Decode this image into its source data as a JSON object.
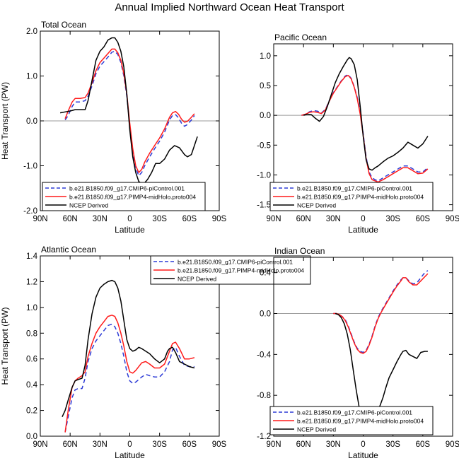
{
  "figure": {
    "title": "Annual Implied Northward Ocean Heat Transport"
  },
  "series_styles": [
    {
      "name": "b.e21.B1850.f09_g17.CMIP6-piControl.001",
      "color": "#2d3bd6",
      "dash": "6,4"
    },
    {
      "name": "b.e21.B1850.f09_g17.PIMP4-midHolo.proto004",
      "color": "#ff1a1a",
      "dash": ""
    },
    {
      "name": "NCEP Derived",
      "color": "#000000",
      "dash": ""
    }
  ],
  "chart_data": [
    {
      "type": "line",
      "title": "Total Ocean",
      "xlabel": "Latitude",
      "ylabel": "Heat Transport (PW)",
      "xlim": [
        90,
        -90
      ],
      "ylim": [
        -2.0,
        2.0
      ],
      "xticks": [
        90,
        60,
        30,
        0,
        -30,
        -60,
        -90
      ],
      "xticklabels": [
        "90N",
        "60N",
        "30N",
        "0",
        "30S",
        "60S",
        "90S"
      ],
      "yticks": [
        -2.0,
        -1.0,
        0.0,
        1.0,
        2.0
      ],
      "yticklabels": [
        "-2.0",
        "-1.0",
        "0.0",
        "1.0",
        "2.0"
      ],
      "zero_line": true,
      "legend": "bottom-left",
      "series": [
        {
          "name": "b.e21.B1850.f09_g17.CMIP6-piControl.001",
          "x": [
            65,
            62,
            58,
            55,
            50,
            45,
            42,
            38,
            34,
            30,
            26,
            22,
            18,
            15,
            12,
            9,
            6,
            3,
            0,
            -3,
            -6,
            -9,
            -12,
            -15,
            -20,
            -25,
            -30,
            -35,
            -40,
            -43,
            -46,
            -49,
            -52,
            -55,
            -58,
            -62,
            -65
          ],
          "y": [
            0.02,
            0.12,
            0.32,
            0.42,
            0.42,
            0.45,
            0.55,
            0.78,
            1.05,
            1.22,
            1.32,
            1.42,
            1.53,
            1.55,
            1.48,
            1.3,
            1.0,
            0.55,
            -0.1,
            -0.7,
            -1.05,
            -1.22,
            -1.15,
            -1.0,
            -0.8,
            -0.62,
            -0.45,
            -0.25,
            0.02,
            0.12,
            0.14,
            0.07,
            -0.05,
            -0.12,
            -0.08,
            0.02,
            0.12
          ]
        },
        {
          "name": "b.e21.B1850.f09_g17.PIMP4-midHolo.proto004",
          "x": [
            65,
            62,
            58,
            55,
            50,
            45,
            42,
            38,
            34,
            30,
            26,
            22,
            18,
            15,
            12,
            9,
            6,
            3,
            0,
            -3,
            -6,
            -9,
            -12,
            -15,
            -20,
            -25,
            -30,
            -35,
            -40,
            -43,
            -46,
            -49,
            -52,
            -55,
            -58,
            -62,
            -65
          ],
          "y": [
            0.05,
            0.22,
            0.42,
            0.5,
            0.5,
            0.52,
            0.62,
            0.85,
            1.12,
            1.3,
            1.4,
            1.5,
            1.6,
            1.6,
            1.52,
            1.35,
            1.05,
            0.6,
            -0.05,
            -0.62,
            -1.0,
            -1.15,
            -1.08,
            -0.92,
            -0.72,
            -0.55,
            -0.38,
            -0.18,
            0.08,
            0.18,
            0.21,
            0.15,
            0.04,
            -0.03,
            -0.01,
            0.08,
            0.16
          ]
        },
        {
          "name": "NCEP Derived",
          "x": [
            70,
            65,
            60,
            55,
            50,
            45,
            42,
            38,
            34,
            30,
            26,
            22,
            18,
            15,
            12,
            9,
            6,
            3,
            0,
            -3,
            -6,
            -9,
            -12,
            -15,
            -18,
            -22,
            -26,
            -30,
            -35,
            -40,
            -45,
            -50,
            -55,
            -58,
            -62,
            -65,
            -68
          ],
          "y": [
            0.18,
            0.2,
            0.22,
            0.25,
            0.25,
            0.25,
            0.45,
            0.9,
            1.35,
            1.55,
            1.65,
            1.8,
            1.85,
            1.85,
            1.75,
            1.55,
            1.2,
            0.6,
            -0.2,
            -0.8,
            -1.15,
            -1.35,
            -1.4,
            -1.38,
            -1.3,
            -1.15,
            -0.95,
            -0.95,
            -0.85,
            -0.65,
            -0.55,
            -0.6,
            -0.75,
            -0.8,
            -0.75,
            -0.55,
            -0.35
          ]
        }
      ]
    },
    {
      "type": "line",
      "title": "Pacific Ocean",
      "xlabel": "Latitude",
      "ylabel": "",
      "xlim": [
        90,
        -90
      ],
      "ylim": [
        -1.6,
        1.2
      ],
      "xticks": [
        90,
        60,
        30,
        0,
        -30,
        -60,
        -90
      ],
      "xticklabels": [
        "90N",
        "60N",
        "30N",
        "0",
        "30S",
        "60S",
        "90S"
      ],
      "yticks": [
        -1.5,
        -1.0,
        -0.5,
        0.0,
        0.5,
        1.0
      ],
      "yticklabels": [
        "-1.5",
        "-1.0",
        "-0.5",
        "0.0",
        "0.5",
        "1.0"
      ],
      "zero_line": true,
      "legend": "bottom-left",
      "series": [
        {
          "name": "b.e21.B1850.f09_g17.CMIP6-piControl.001",
          "x": [
            62,
            58,
            54,
            50,
            46,
            42,
            38,
            34,
            30,
            26,
            22,
            18,
            15,
            12,
            9,
            6,
            3,
            0,
            -3,
            -6,
            -9,
            -12,
            -15,
            -20,
            -25,
            -30,
            -35,
            -40,
            -45,
            -50,
            -55,
            -60,
            -65
          ],
          "y": [
            0.0,
            0.02,
            0.06,
            0.08,
            0.07,
            0.04,
            0.1,
            0.25,
            0.38,
            0.48,
            0.58,
            0.66,
            0.68,
            0.62,
            0.48,
            0.3,
            0.05,
            -0.3,
            -0.7,
            -0.95,
            -1.05,
            -1.08,
            -1.1,
            -1.05,
            -1.0,
            -0.95,
            -0.9,
            -0.85,
            -0.85,
            -0.9,
            -0.95,
            -0.95,
            -0.88
          ]
        },
        {
          "name": "b.e21.B1850.f09_g17.PIMP4-midHolo.proto004",
          "x": [
            62,
            58,
            54,
            50,
            46,
            42,
            38,
            34,
            30,
            26,
            22,
            18,
            15,
            12,
            9,
            6,
            3,
            0,
            -3,
            -6,
            -9,
            -12,
            -15,
            -20,
            -25,
            -30,
            -35,
            -40,
            -45,
            -50,
            -55,
            -60,
            -65
          ],
          "y": [
            0.0,
            0.02,
            0.05,
            0.06,
            0.05,
            0.03,
            0.09,
            0.24,
            0.37,
            0.47,
            0.57,
            0.65,
            0.67,
            0.61,
            0.47,
            0.28,
            0.02,
            -0.33,
            -0.73,
            -0.98,
            -1.08,
            -1.1,
            -1.12,
            -1.08,
            -1.03,
            -0.98,
            -0.93,
            -0.88,
            -0.88,
            -0.93,
            -0.98,
            -0.97,
            -0.9
          ]
        },
        {
          "name": "NCEP Derived",
          "x": [
            60,
            56,
            52,
            48,
            44,
            40,
            36,
            32,
            28,
            24,
            20,
            16,
            14,
            12,
            9,
            6,
            3,
            0,
            -3,
            -6,
            -9,
            -12,
            -15,
            -20,
            -25,
            -30,
            -35,
            -40,
            -45,
            -50,
            -55,
            -60,
            -65
          ],
          "y": [
            0.0,
            0.02,
            0.01,
            -0.05,
            -0.1,
            -0.02,
            0.15,
            0.35,
            0.55,
            0.7,
            0.82,
            0.93,
            0.97,
            0.95,
            0.85,
            0.6,
            0.15,
            -0.35,
            -0.75,
            -0.9,
            -0.92,
            -0.88,
            -0.85,
            -0.78,
            -0.72,
            -0.68,
            -0.62,
            -0.55,
            -0.45,
            -0.5,
            -0.55,
            -0.48,
            -0.35
          ]
        }
      ]
    },
    {
      "type": "line",
      "title": "Atlantic Ocean",
      "xlabel": "Latitude",
      "ylabel": "Heat Transport (PW)",
      "xlim": [
        90,
        -90
      ],
      "ylim": [
        0.0,
        1.4
      ],
      "xticks": [
        90,
        60,
        30,
        0,
        -30,
        -60,
        -90
      ],
      "xticklabels": [
        "90N",
        "60N",
        "30N",
        "0",
        "30S",
        "60S",
        "90S"
      ],
      "yticks": [
        0.0,
        0.2,
        0.4,
        0.6,
        0.8,
        1.0,
        1.2,
        1.4
      ],
      "yticklabels": [
        "0.0",
        "0.2",
        "0.4",
        "0.6",
        "0.8",
        "1.0",
        "1.2",
        "1.4"
      ],
      "zero_line": false,
      "legend": "top-right",
      "series": [
        {
          "name": "b.e21.B1850.f09_g17.CMIP6-piControl.001",
          "x": [
            65,
            62,
            58,
            55,
            52,
            48,
            45,
            42,
            38,
            34,
            30,
            26,
            22,
            18,
            15,
            12,
            9,
            6,
            3,
            0,
            -3,
            -6,
            -9,
            -12,
            -16,
            -20,
            -25,
            -30,
            -35,
            -40,
            -43,
            -46,
            -50,
            -55,
            -60,
            -65
          ],
          "y": [
            0.03,
            0.15,
            0.3,
            0.36,
            0.37,
            0.37,
            0.45,
            0.58,
            0.68,
            0.74,
            0.78,
            0.82,
            0.86,
            0.87,
            0.85,
            0.8,
            0.72,
            0.62,
            0.5,
            0.43,
            0.41,
            0.42,
            0.44,
            0.46,
            0.48,
            0.47,
            0.46,
            0.46,
            0.5,
            0.58,
            0.67,
            0.69,
            0.62,
            0.55,
            0.54,
            0.54
          ]
        },
        {
          "name": "b.e21.B1850.f09_g17.PIMP4-midHolo.proto004",
          "x": [
            65,
            62,
            58,
            55,
            52,
            48,
            45,
            42,
            38,
            34,
            30,
            26,
            22,
            18,
            15,
            12,
            9,
            6,
            3,
            0,
            -3,
            -6,
            -9,
            -12,
            -16,
            -20,
            -25,
            -30,
            -35,
            -40,
            -43,
            -46,
            -50,
            -55,
            -60,
            -65
          ],
          "y": [
            0.03,
            0.2,
            0.38,
            0.43,
            0.45,
            0.47,
            0.5,
            0.62,
            0.72,
            0.8,
            0.85,
            0.89,
            0.93,
            0.94,
            0.93,
            0.88,
            0.8,
            0.7,
            0.58,
            0.5,
            0.49,
            0.51,
            0.54,
            0.57,
            0.58,
            0.56,
            0.53,
            0.53,
            0.56,
            0.66,
            0.72,
            0.73,
            0.68,
            0.6,
            0.6,
            0.61
          ]
        },
        {
          "name": "NCEP Derived",
          "x": [
            68,
            65,
            62,
            58,
            55,
            52,
            48,
            45,
            42,
            38,
            34,
            30,
            26,
            22,
            18,
            15,
            12,
            9,
            6,
            3,
            0,
            -3,
            -6,
            -9,
            -12,
            -16,
            -20,
            -25,
            -30,
            -35,
            -38,
            -40,
            -43,
            -46,
            -50,
            -55,
            -60,
            -65
          ],
          "y": [
            0.15,
            0.2,
            0.28,
            0.38,
            0.43,
            0.44,
            0.45,
            0.55,
            0.75,
            0.95,
            1.08,
            1.15,
            1.18,
            1.2,
            1.21,
            1.2,
            1.15,
            1.05,
            0.9,
            0.75,
            0.68,
            0.66,
            0.67,
            0.69,
            0.68,
            0.66,
            0.64,
            0.6,
            0.57,
            0.6,
            0.66,
            0.68,
            0.69,
            0.65,
            0.58,
            0.56,
            0.54,
            0.53
          ]
        }
      ]
    },
    {
      "type": "line",
      "title": "Indian Ocean",
      "xlabel": "Latitude",
      "ylabel": "",
      "xlim": [
        90,
        -90
      ],
      "ylim": [
        -1.2,
        0.55
      ],
      "xticks": [
        90,
        60,
        30,
        0,
        -30,
        -60,
        -90
      ],
      "xticklabels": [
        "90N",
        "60N",
        "30N",
        "0",
        "30S",
        "60S",
        "90S"
      ],
      "yticks": [
        -1.2,
        -0.8,
        -0.4,
        0.0,
        0.4
      ],
      "yticklabels": [
        "-1.2",
        "-0.8",
        "-0.4",
        "0.0",
        "0.4"
      ],
      "zero_line": true,
      "legend": "bottom-left",
      "series": [
        {
          "name": "b.e21.B1850.f09_g17.CMIP6-piControl.001",
          "x": [
            30,
            27,
            24,
            21,
            18,
            15,
            12,
            9,
            6,
            3,
            0,
            -3,
            -6,
            -9,
            -12,
            -15,
            -18,
            -21,
            -24,
            -27,
            -30,
            -34,
            -38,
            -40,
            -43,
            -46,
            -50,
            -54,
            -58,
            -62,
            -65
          ],
          "y": [
            0.0,
            0.0,
            -0.01,
            -0.03,
            -0.06,
            -0.12,
            -0.2,
            -0.28,
            -0.34,
            -0.37,
            -0.38,
            -0.36,
            -0.3,
            -0.22,
            -0.12,
            -0.04,
            0.02,
            0.07,
            0.12,
            0.17,
            0.22,
            0.28,
            0.33,
            0.35,
            0.35,
            0.32,
            0.29,
            0.3,
            0.35,
            0.4,
            0.42
          ]
        },
        {
          "name": "b.e21.B1850.f09_g17.PIMP4-midHolo.proto004",
          "x": [
            30,
            27,
            24,
            21,
            18,
            15,
            12,
            9,
            6,
            3,
            0,
            -3,
            -6,
            -9,
            -12,
            -15,
            -18,
            -21,
            -24,
            -27,
            -30,
            -34,
            -38,
            -40,
            -43,
            -46,
            -50,
            -54,
            -58,
            -62,
            -65
          ],
          "y": [
            0.0,
            0.0,
            -0.01,
            -0.03,
            -0.07,
            -0.13,
            -0.21,
            -0.29,
            -0.35,
            -0.38,
            -0.39,
            -0.37,
            -0.31,
            -0.23,
            -0.13,
            -0.05,
            0.01,
            0.06,
            0.11,
            0.16,
            0.21,
            0.27,
            0.32,
            0.35,
            0.35,
            0.31,
            0.28,
            0.28,
            0.32,
            0.36,
            0.39
          ]
        },
        {
          "name": "NCEP Derived",
          "x": [
            28,
            25,
            22,
            19,
            16,
            13,
            10,
            7,
            4,
            1,
            -2,
            -5,
            -8,
            -11,
            -14,
            -17,
            -20,
            -23,
            -26,
            -30,
            -34,
            -38,
            -40,
            -43,
            -46,
            -50,
            -54,
            -58,
            -62,
            -65
          ],
          "y": [
            0.0,
            -0.01,
            -0.04,
            -0.1,
            -0.2,
            -0.35,
            -0.55,
            -0.75,
            -0.92,
            -1.02,
            -1.05,
            -1.05,
            -1.02,
            -0.98,
            -0.95,
            -0.9,
            -0.82,
            -0.72,
            -0.63,
            -0.55,
            -0.47,
            -0.4,
            -0.37,
            -0.36,
            -0.4,
            -0.42,
            -0.44,
            -0.38,
            -0.37,
            -0.37
          ]
        }
      ]
    }
  ]
}
